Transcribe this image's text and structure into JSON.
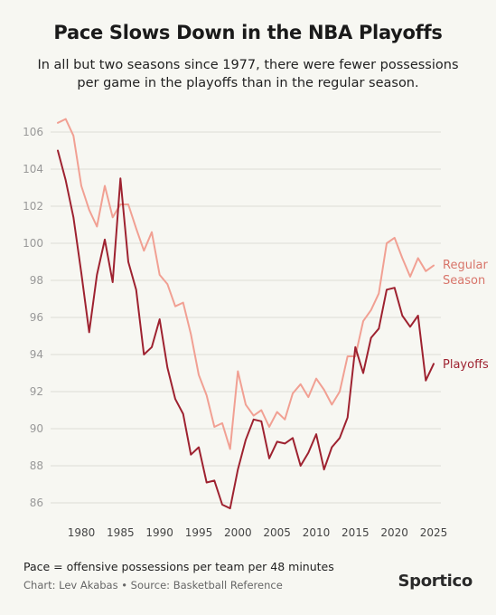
{
  "title": "Pace Slows Down in the NBA Playoffs",
  "subtitle": "In all but two seasons since 1977, there were fewer possessions per game in the playoffs than in the regular season.",
  "footer": {
    "note": "Pace = offensive possessions per team per 48 minutes",
    "credit": "Chart: Lev Akabas • Source: Basketball Reference",
    "brand": "Sportico"
  },
  "colors": {
    "regular": "#f1a093",
    "playoffs": "#9e2230",
    "regular_label": "#d8756a",
    "playoffs_label": "#9e2230",
    "grid": "#dcdcd6",
    "tick": "#999999"
  },
  "chart_data": {
    "type": "line",
    "title": "Pace Slows Down in the NBA Playoffs",
    "xlabel": "",
    "ylabel": "",
    "xlim": [
      1976,
      2025
    ],
    "ylim": [
      85,
      107
    ],
    "x_ticks": [
      1980,
      1985,
      1990,
      1995,
      2000,
      2005,
      2010,
      2015,
      2020,
      2025
    ],
    "y_ticks": [
      86,
      88,
      90,
      92,
      94,
      96,
      98,
      100,
      102,
      104,
      106
    ],
    "grid": true,
    "series": [
      {
        "name": "Regular Season",
        "label_lines": [
          "Regular",
          "Season"
        ],
        "x": [
          1977,
          1978,
          1979,
          1980,
          1981,
          1982,
          1983,
          1984,
          1985,
          1986,
          1987,
          1988,
          1989,
          1990,
          1991,
          1992,
          1993,
          1994,
          1995,
          1996,
          1997,
          1998,
          1999,
          2000,
          2001,
          2002,
          2003,
          2004,
          2005,
          2006,
          2007,
          2008,
          2009,
          2010,
          2011,
          2012,
          2013,
          2014,
          2015,
          2016,
          2017,
          2018,
          2019,
          2020,
          2021,
          2022,
          2023,
          2024,
          2025
        ],
        "values": [
          106.5,
          106.7,
          105.8,
          103.1,
          101.8,
          100.9,
          103.1,
          101.4,
          102.1,
          102.1,
          100.8,
          99.6,
          100.6,
          98.3,
          97.8,
          96.6,
          96.8,
          95.1,
          92.9,
          91.8,
          90.1,
          90.3,
          88.9,
          93.1,
          91.3,
          90.7,
          91.0,
          90.1,
          90.9,
          90.5,
          91.9,
          92.4,
          91.7,
          92.7,
          92.1,
          91.3,
          92.0,
          93.9,
          93.9,
          95.8,
          96.4,
          97.3,
          100.0,
          100.3,
          99.2,
          98.2,
          99.2,
          98.5,
          98.8
        ]
      },
      {
        "name": "Playoffs",
        "label_lines": [
          "Playoffs"
        ],
        "x": [
          1977,
          1978,
          1979,
          1980,
          1981,
          1982,
          1983,
          1984,
          1985,
          1986,
          1987,
          1988,
          1989,
          1990,
          1991,
          1992,
          1993,
          1994,
          1995,
          1996,
          1997,
          1998,
          1999,
          2000,
          2001,
          2002,
          2003,
          2004,
          2005,
          2006,
          2007,
          2008,
          2009,
          2010,
          2011,
          2012,
          2013,
          2014,
          2015,
          2016,
          2017,
          2018,
          2019,
          2020,
          2021,
          2022,
          2023,
          2024,
          2025
        ],
        "values": [
          105.0,
          103.4,
          101.4,
          98.4,
          95.2,
          98.3,
          100.2,
          97.9,
          103.5,
          99.0,
          97.5,
          94.0,
          94.4,
          95.9,
          93.3,
          91.6,
          90.8,
          88.6,
          89.0,
          87.1,
          87.2,
          85.9,
          85.7,
          87.8,
          89.4,
          90.5,
          90.4,
          88.4,
          89.3,
          89.2,
          89.5,
          88.0,
          88.7,
          89.7,
          87.8,
          89.0,
          89.5,
          90.6,
          94.4,
          93.0,
          94.9,
          95.4,
          97.5,
          97.6,
          96.1,
          95.5,
          96.1,
          92.6,
          93.5
        ]
      }
    ]
  }
}
